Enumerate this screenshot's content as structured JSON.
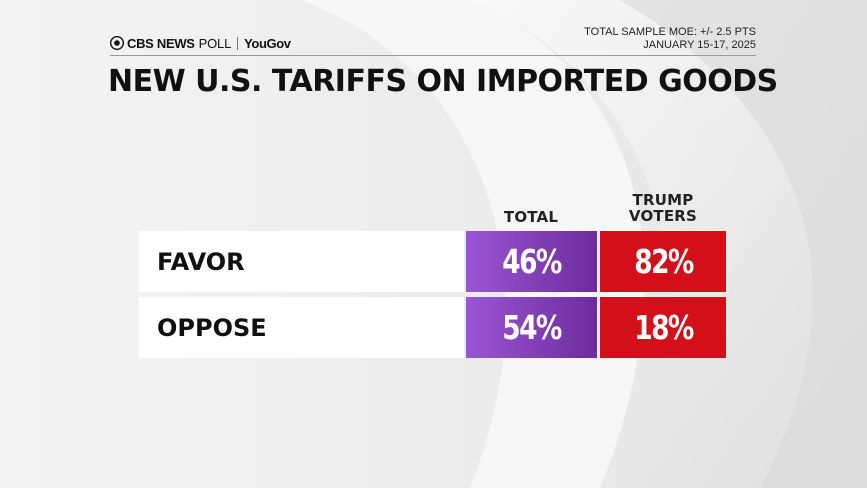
{
  "header": {
    "brand_left": "CBS NEWS",
    "brand_poll": "POLL",
    "brand_partner": "YouGov",
    "moe": "TOTAL SAMPLE MOE: +/- 2.5 PTS",
    "dates": "JANUARY 15-17, 2025"
  },
  "chart_data": {
    "type": "table",
    "title": "NEW U.S. TARIFFS ON IMPORTED GOODS",
    "columns": [
      "TOTAL",
      "TRUMP VOTERS"
    ],
    "columns_lines": [
      [
        "TOTAL"
      ],
      [
        "TRUMP",
        "VOTERS"
      ]
    ],
    "rows": [
      {
        "label": "FAVOR",
        "values": [
          46,
          82
        ],
        "display": [
          "46%",
          "82%"
        ]
      },
      {
        "label": "OPPOSE",
        "values": [
          54,
          18
        ],
        "display": [
          "54%",
          "18%"
        ]
      }
    ],
    "unit": "%",
    "colors": {
      "total": "#7b3bb0",
      "trump": "#d30f1a",
      "label_bg": "#ffffff",
      "text": "#111111"
    }
  }
}
